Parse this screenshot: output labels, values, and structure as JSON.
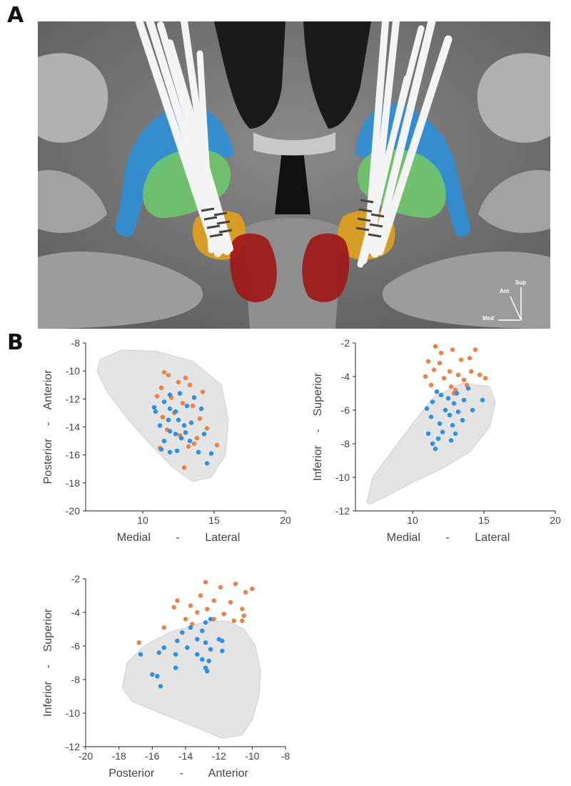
{
  "panel_a": {
    "letter": "A",
    "orientation": {
      "sup": "Sup",
      "ant": "Ant",
      "med": "Med"
    }
  },
  "panel_b": {
    "letter": "B"
  },
  "colors": {
    "mri_bg": "#7a7a7a",
    "blue_struct": "#2d8fd6",
    "green_struct": "#6ec86a",
    "orange_struct": "#e0a020",
    "red_struct": "#a01818",
    "electrode": "#f4f4f4",
    "orange_points": "#e8834a",
    "blue_points": "#2f8fe0",
    "hull": "#e4e4e4"
  },
  "chart_data": [
    {
      "type": "scatter",
      "xlabel": "Medial        -        Lateral",
      "ylabel": "Posterior    -    Anterior",
      "xlim": [
        6,
        20
      ],
      "ylim": [
        -20,
        -8
      ],
      "xticks": [
        10,
        15,
        20
      ],
      "yticks": [
        -20,
        -18,
        -16,
        -14,
        -12,
        -10,
        -8
      ],
      "series": [
        {
          "color": "#e8834a",
          "points": [
            [
              11.5,
              -10.1
            ],
            [
              11.8,
              -10.3
            ],
            [
              11.3,
              -11.2
            ],
            [
              12.5,
              -10.8
            ],
            [
              13.0,
              -10.5
            ],
            [
              13.3,
              -11.0
            ],
            [
              14.2,
              -11.5
            ],
            [
              11.0,
              -11.8
            ],
            [
              12.0,
              -11.9
            ],
            [
              12.8,
              -12.3
            ],
            [
              13.5,
              -12.5
            ],
            [
              12.2,
              -13.0
            ],
            [
              11.4,
              -13.3
            ],
            [
              14.0,
              -13.4
            ],
            [
              11.7,
              -14.2
            ],
            [
              14.5,
              -14.1
            ],
            [
              12.6,
              -14.6
            ],
            [
              13.8,
              -14.8
            ],
            [
              15.2,
              -15.3
            ],
            [
              11.2,
              -15.5
            ],
            [
              13.2,
              -15.4
            ],
            [
              13.6,
              -15.2
            ],
            [
              12.9,
              -16.9
            ]
          ]
        },
        {
          "color": "#2f8fe0",
          "points": [
            [
              11.9,
              -11.7
            ],
            [
              12.6,
              -11.6
            ],
            [
              13.6,
              -11.9
            ],
            [
              11.5,
              -12.2
            ],
            [
              10.8,
              -12.6
            ],
            [
              10.9,
              -12.9
            ],
            [
              11.9,
              -12.7
            ],
            [
              12.3,
              -12.9
            ],
            [
              13.1,
              -12.5
            ],
            [
              14.1,
              -12.7
            ],
            [
              11.8,
              -13.5
            ],
            [
              12.5,
              -13.5
            ],
            [
              11.2,
              -13.9
            ],
            [
              12.9,
              -13.9
            ],
            [
              13.4,
              -13.7
            ],
            [
              11.9,
              -14.3
            ],
            [
              12.3,
              -14.5
            ],
            [
              13.0,
              -14.4
            ],
            [
              14.3,
              -14.5
            ],
            [
              11.5,
              -15.0
            ],
            [
              12.7,
              -14.8
            ],
            [
              13.3,
              -15.0
            ],
            [
              11.3,
              -15.6
            ],
            [
              11.9,
              -15.8
            ],
            [
              12.4,
              -15.7
            ],
            [
              13.9,
              -15.8
            ],
            [
              14.8,
              -15.9
            ],
            [
              14.5,
              -16.6
            ]
          ]
        }
      ]
    },
    {
      "type": "scatter",
      "xlabel": "Medial        -        Lateral",
      "ylabel": "Inferior    -    Superior",
      "xlim": [
        6,
        20
      ],
      "ylim": [
        -12,
        -2
      ],
      "xticks": [
        10,
        15,
        20
      ],
      "yticks": [
        -12,
        -10,
        -8,
        -6,
        -4,
        -2
      ],
      "series": [
        {
          "color": "#e8834a",
          "points": [
            [
              11.6,
              -2.2
            ],
            [
              12.0,
              -2.6
            ],
            [
              12.8,
              -2.4
            ],
            [
              14.4,
              -2.4
            ],
            [
              11.1,
              -3.1
            ],
            [
              11.9,
              -3.2
            ],
            [
              13.4,
              -3.0
            ],
            [
              14.0,
              -2.9
            ],
            [
              11.5,
              -3.6
            ],
            [
              12.6,
              -3.7
            ],
            [
              13.2,
              -3.9
            ],
            [
              14.1,
              -3.7
            ],
            [
              10.9,
              -4.0
            ],
            [
              12.2,
              -4.1
            ],
            [
              13.6,
              -4.2
            ],
            [
              14.7,
              -3.9
            ],
            [
              15.1,
              -4.1
            ],
            [
              11.3,
              -4.5
            ],
            [
              12.7,
              -4.6
            ],
            [
              13.0,
              -4.8
            ],
            [
              13.8,
              -4.5
            ],
            [
              12.9,
              -5.0
            ]
          ]
        },
        {
          "color": "#2f8fe0",
          "points": [
            [
              11.7,
              -4.9
            ],
            [
              12.0,
              -5.1
            ],
            [
              13.1,
              -5.0
            ],
            [
              13.9,
              -4.7
            ],
            [
              12.5,
              -5.3
            ],
            [
              11.4,
              -5.5
            ],
            [
              12.9,
              -5.6
            ],
            [
              13.6,
              -5.4
            ],
            [
              14.9,
              -5.4
            ],
            [
              11.0,
              -5.9
            ],
            [
              12.3,
              -6.0
            ],
            [
              13.2,
              -6.1
            ],
            [
              14.2,
              -6.0
            ],
            [
              11.3,
              -6.4
            ],
            [
              12.6,
              -6.3
            ],
            [
              13.5,
              -6.6
            ],
            [
              11.9,
              -6.8
            ],
            [
              12.8,
              -6.9
            ],
            [
              11.1,
              -7.4
            ],
            [
              12.1,
              -7.3
            ],
            [
              13.0,
              -7.4
            ],
            [
              11.8,
              -7.7
            ],
            [
              12.7,
              -7.8
            ],
            [
              11.4,
              -8.0
            ],
            [
              11.6,
              -8.3
            ]
          ]
        }
      ]
    },
    {
      "type": "scatter",
      "xlabel": "Posterior        -        Anterior",
      "ylabel": "Inferior    -    Superior",
      "xlim": [
        -20,
        -8
      ],
      "ylim": [
        -12,
        -2
      ],
      "xticks": [
        -20,
        -18,
        -16,
        -14,
        -12,
        -10,
        -8
      ],
      "yticks": [
        -12,
        -10,
        -8,
        -6,
        -4,
        -2
      ],
      "series": [
        {
          "color": "#e8834a",
          "points": [
            [
              -12.8,
              -2.2
            ],
            [
              -11.0,
              -2.3
            ],
            [
              -10.0,
              -2.6
            ],
            [
              -11.9,
              -2.5
            ],
            [
              -10.4,
              -2.8
            ],
            [
              -13.1,
              -3.0
            ],
            [
              -14.5,
              -3.3
            ],
            [
              -12.3,
              -3.3
            ],
            [
              -11.3,
              -3.4
            ],
            [
              -13.7,
              -3.6
            ],
            [
              -14.7,
              -3.7
            ],
            [
              -12.7,
              -3.8
            ],
            [
              -10.6,
              -3.8
            ],
            [
              -13.3,
              -4.0
            ],
            [
              -11.7,
              -4.1
            ],
            [
              -10.5,
              -4.2
            ],
            [
              -14.0,
              -4.4
            ],
            [
              -12.3,
              -4.4
            ],
            [
              -11.1,
              -4.5
            ],
            [
              -10.6,
              -4.5
            ],
            [
              -15.3,
              -4.9
            ],
            [
              -16.8,
              -5.8
            ],
            [
              -13.6,
              -4.7
            ]
          ]
        },
        {
          "color": "#2f8fe0",
          "points": [
            [
              -13.7,
              -4.9
            ],
            [
              -12.8,
              -4.6
            ],
            [
              -12.5,
              -4.4
            ],
            [
              -14.2,
              -5.2
            ],
            [
              -13.0,
              -5.1
            ],
            [
              -12.0,
              -5.6
            ],
            [
              -11.8,
              -5.7
            ],
            [
              -14.5,
              -5.7
            ],
            [
              -13.3,
              -5.6
            ],
            [
              -12.8,
              -5.8
            ],
            [
              -15.3,
              -6.1
            ],
            [
              -13.9,
              -6.1
            ],
            [
              -12.5,
              -6.2
            ],
            [
              -11.8,
              -6.3
            ],
            [
              -16.7,
              -6.5
            ],
            [
              -15.6,
              -6.4
            ],
            [
              -14.6,
              -6.5
            ],
            [
              -13.3,
              -6.5
            ],
            [
              -13.0,
              -6.8
            ],
            [
              -12.6,
              -6.9
            ],
            [
              -14.6,
              -7.3
            ],
            [
              -12.8,
              -7.3
            ],
            [
              -12.7,
              -7.5
            ],
            [
              -16.0,
              -7.7
            ],
            [
              -15.7,
              -7.8
            ],
            [
              -15.5,
              -8.4
            ]
          ]
        }
      ]
    }
  ]
}
